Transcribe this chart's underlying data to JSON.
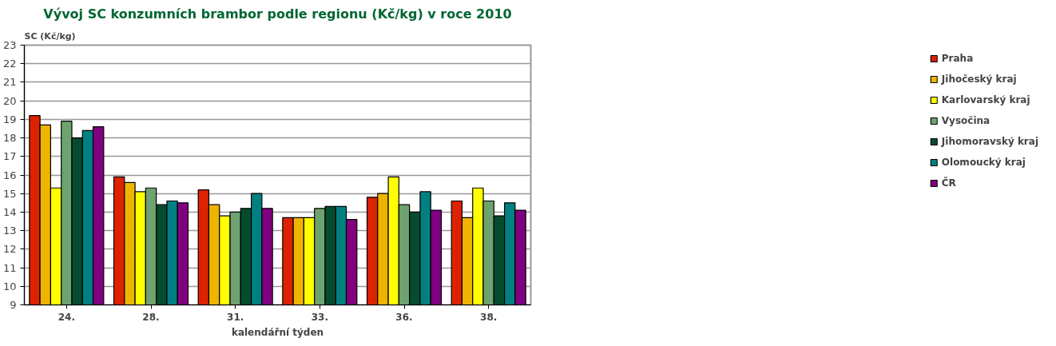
{
  "chart_data": {
    "type": "bar",
    "title": "Vývoj SC konzumních brambor podle regionu (Kč/kg) v roce 2010",
    "ylabel": "SC (Kč/kg)",
    "xlabel": "kalendářní týden",
    "categories": [
      "24.",
      "28.",
      "31.",
      "33.",
      "36.",
      "38."
    ],
    "series": [
      {
        "name": "Praha",
        "color": "#dd2200",
        "values": [
          19.2,
          15.9,
          15.2,
          13.7,
          14.8,
          14.6
        ]
      },
      {
        "name": "Jihočeský kraj",
        "color": "#eeb400",
        "values": [
          18.7,
          15.6,
          14.4,
          13.7,
          15.0,
          13.7
        ]
      },
      {
        "name": "Karlovarský kraj",
        "color": "#ffff00",
        "values": [
          15.3,
          15.1,
          13.8,
          13.7,
          15.9,
          15.3
        ]
      },
      {
        "name": "Vysočina",
        "color": "#6ea26e",
        "values": [
          18.9,
          15.3,
          14.0,
          14.2,
          14.4,
          14.6
        ]
      },
      {
        "name": "Jihomoravský kraj",
        "color": "#054b30",
        "values": [
          18.0,
          14.4,
          14.2,
          14.3,
          14.0,
          13.8
        ]
      },
      {
        "name": "Olomoucký kraj",
        "color": "#008080",
        "values": [
          18.4,
          14.6,
          15.0,
          14.3,
          15.1,
          14.5
        ]
      },
      {
        "name": "ČR",
        "color": "#800080",
        "values": [
          18.6,
          14.5,
          14.2,
          13.6,
          14.1,
          14.1
        ]
      }
    ],
    "ylim": [
      9,
      23
    ],
    "yticks": [
      9,
      10,
      11,
      12,
      13,
      14,
      15,
      16,
      17,
      18,
      19,
      20,
      21,
      22,
      23
    ],
    "grid": "y",
    "legend": "right"
  }
}
